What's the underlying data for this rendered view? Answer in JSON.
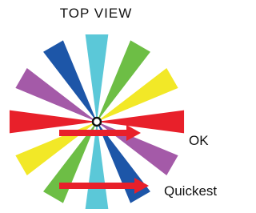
{
  "title": "TOP VIEW",
  "arrows": [
    {
      "label": "OK"
    },
    {
      "label": "Quickest"
    }
  ]
}
